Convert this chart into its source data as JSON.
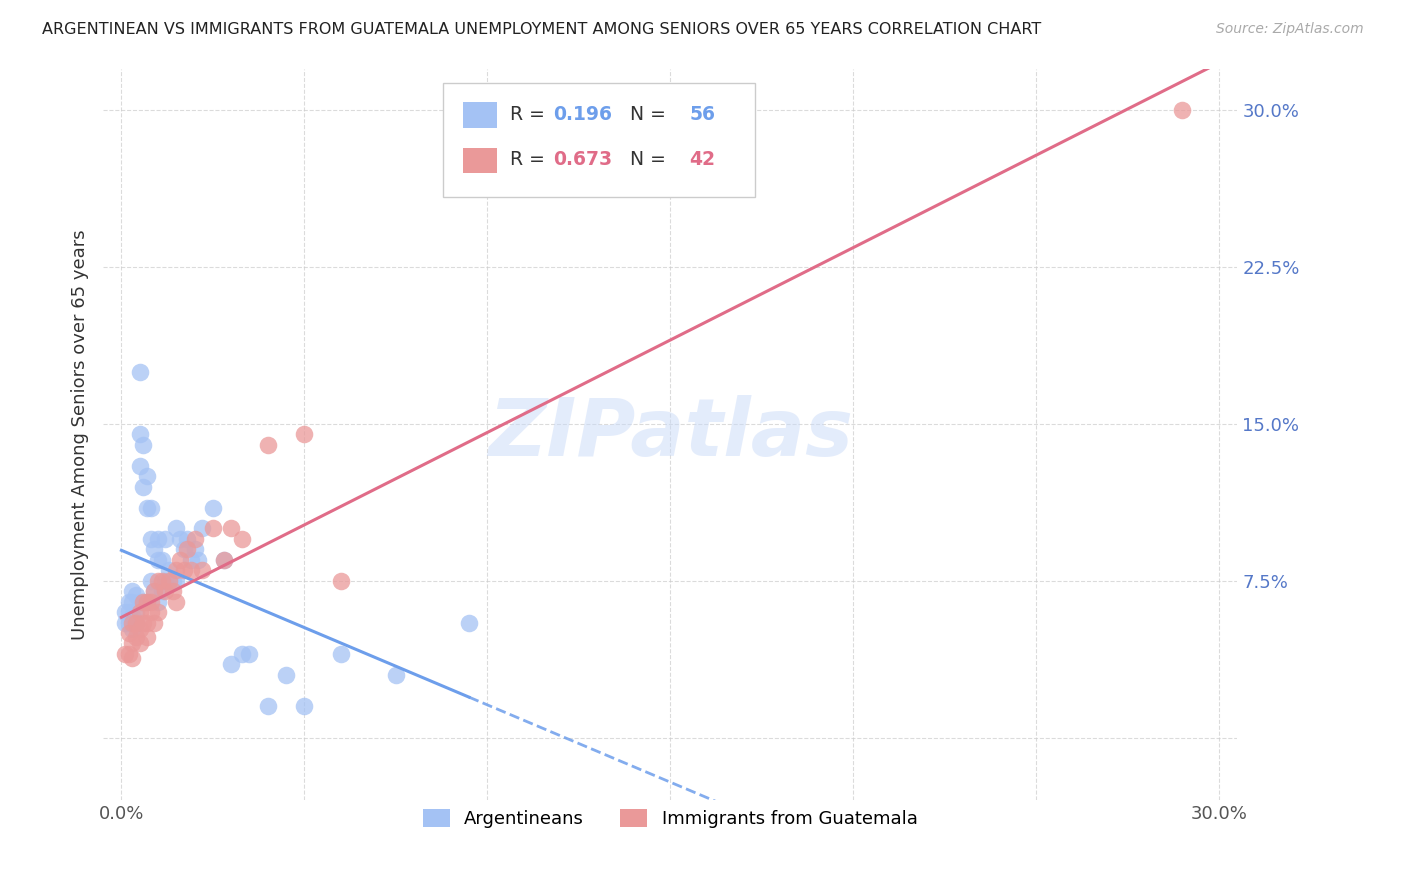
{
  "title": "ARGENTINEAN VS IMMIGRANTS FROM GUATEMALA UNEMPLOYMENT AMONG SENIORS OVER 65 YEARS CORRELATION CHART",
  "source": "Source: ZipAtlas.com",
  "ylabel": "Unemployment Among Seniors over 65 years",
  "R1": 0.196,
  "N1": 56,
  "R2": 0.673,
  "N2": 42,
  "color_blue": "#a4c2f4",
  "color_pink": "#ea9999",
  "trend_blue": "#6d9eeb",
  "trend_pink": "#e06c88",
  "watermark_color": "#c9daf8",
  "legend_label1": "Argentineans",
  "legend_label2": "Immigrants from Guatemala",
  "argentineans_x": [
    0.001,
    0.001,
    0.002,
    0.002,
    0.002,
    0.003,
    0.003,
    0.003,
    0.003,
    0.004,
    0.004,
    0.004,
    0.005,
    0.005,
    0.005,
    0.005,
    0.006,
    0.006,
    0.006,
    0.007,
    0.007,
    0.007,
    0.008,
    0.008,
    0.008,
    0.009,
    0.009,
    0.01,
    0.01,
    0.01,
    0.011,
    0.011,
    0.012,
    0.012,
    0.013,
    0.014,
    0.015,
    0.015,
    0.016,
    0.017,
    0.018,
    0.019,
    0.02,
    0.021,
    0.022,
    0.025,
    0.028,
    0.03,
    0.033,
    0.035,
    0.04,
    0.045,
    0.05,
    0.06,
    0.075,
    0.095
  ],
  "argentineans_y": [
    0.06,
    0.055,
    0.065,
    0.06,
    0.055,
    0.07,
    0.065,
    0.058,
    0.052,
    0.068,
    0.055,
    0.06,
    0.175,
    0.145,
    0.13,
    0.065,
    0.14,
    0.12,
    0.065,
    0.125,
    0.11,
    0.065,
    0.11,
    0.095,
    0.075,
    0.09,
    0.07,
    0.095,
    0.085,
    0.065,
    0.085,
    0.07,
    0.095,
    0.075,
    0.08,
    0.075,
    0.1,
    0.075,
    0.095,
    0.09,
    0.095,
    0.085,
    0.09,
    0.085,
    0.1,
    0.11,
    0.085,
    0.035,
    0.04,
    0.04,
    0.015,
    0.03,
    0.015,
    0.04,
    0.03,
    0.055
  ],
  "guatemalans_x": [
    0.001,
    0.002,
    0.002,
    0.003,
    0.003,
    0.003,
    0.004,
    0.004,
    0.005,
    0.005,
    0.005,
    0.006,
    0.006,
    0.007,
    0.007,
    0.007,
    0.008,
    0.008,
    0.009,
    0.009,
    0.01,
    0.01,
    0.011,
    0.012,
    0.013,
    0.014,
    0.015,
    0.015,
    0.016,
    0.017,
    0.018,
    0.019,
    0.02,
    0.022,
    0.025,
    0.028,
    0.03,
    0.033,
    0.04,
    0.05,
    0.06,
    0.29
  ],
  "guatemalans_y": [
    0.04,
    0.05,
    0.04,
    0.055,
    0.045,
    0.038,
    0.055,
    0.048,
    0.06,
    0.052,
    0.045,
    0.065,
    0.055,
    0.065,
    0.055,
    0.048,
    0.065,
    0.06,
    0.07,
    0.055,
    0.075,
    0.06,
    0.075,
    0.07,
    0.075,
    0.07,
    0.08,
    0.065,
    0.085,
    0.08,
    0.09,
    0.08,
    0.095,
    0.08,
    0.1,
    0.085,
    0.1,
    0.095,
    0.14,
    0.145,
    0.075,
    0.3
  ],
  "xlim": [
    -0.005,
    0.305
  ],
  "ylim": [
    -0.03,
    0.32
  ],
  "xticks": [
    0.0,
    0.05,
    0.1,
    0.15,
    0.2,
    0.25,
    0.3
  ],
  "yticks": [
    0.0,
    0.075,
    0.15,
    0.225,
    0.3
  ]
}
